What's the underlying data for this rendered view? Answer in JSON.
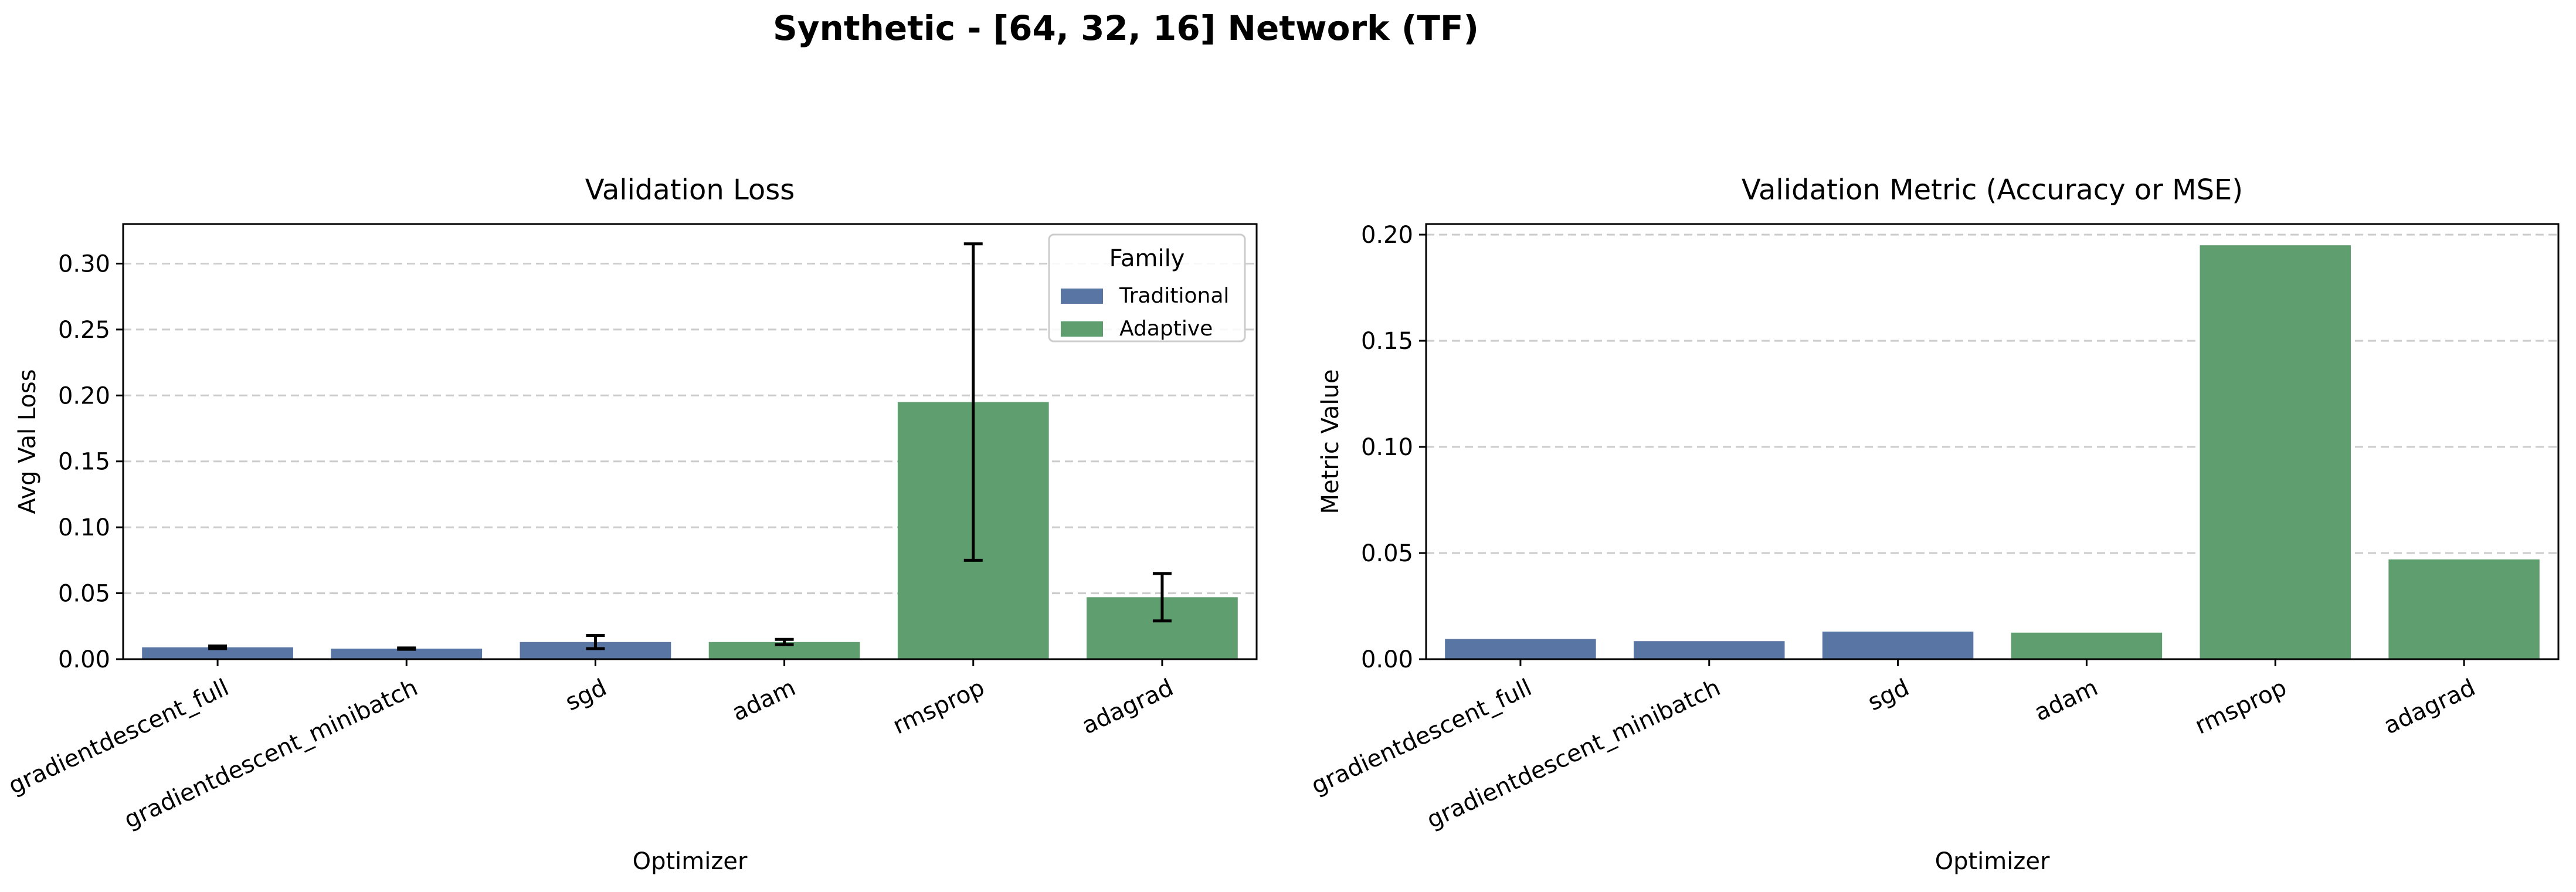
{
  "figure": {
    "suptitle": "Synthetic - [64, 32, 16] Network (TF)"
  },
  "legend": {
    "title": "Family",
    "placement": "upper right",
    "entries": [
      {
        "label": "Traditional",
        "color": "#5875A4"
      },
      {
        "label": "Adaptive",
        "color": "#5F9E6E"
      }
    ]
  },
  "chart_data": [
    {
      "type": "bar",
      "title": "Validation Loss",
      "xlabel": "Optimizer",
      "ylabel": "Avg Val Loss",
      "categories": [
        "gradientdescent_full",
        "gradientdescent_minibatch",
        "sgd",
        "adam",
        "rmsprop",
        "adagrad"
      ],
      "family": [
        "Traditional",
        "Traditional",
        "Traditional",
        "Adaptive",
        "Adaptive",
        "Adaptive"
      ],
      "values": [
        0.009,
        0.008,
        0.013,
        0.013,
        0.195,
        0.047
      ],
      "error": [
        0.001,
        0.0005,
        0.005,
        0.002,
        0.12,
        0.018
      ],
      "ylim": [
        0,
        0.33
      ],
      "yticks": [
        0.0,
        0.05,
        0.1,
        0.15,
        0.2,
        0.25,
        0.3
      ],
      "ytick_labels": [
        "0.00",
        "0.05",
        "0.10",
        "0.15",
        "0.20",
        "0.25",
        "0.30"
      ],
      "grid": "y dashed",
      "legend": true
    },
    {
      "type": "bar",
      "title": "Validation Metric (Accuracy or MSE)",
      "xlabel": "Optimizer",
      "ylabel": "Metric Value",
      "categories": [
        "gradientdescent_full",
        "gradientdescent_minibatch",
        "sgd",
        "adam",
        "rmsprop",
        "adagrad"
      ],
      "family": [
        "Traditional",
        "Traditional",
        "Traditional",
        "Adaptive",
        "Adaptive",
        "Adaptive"
      ],
      "values": [
        0.0095,
        0.0085,
        0.013,
        0.0125,
        0.195,
        0.047
      ],
      "ylim": [
        0,
        0.205
      ],
      "yticks": [
        0.0,
        0.05,
        0.1,
        0.15,
        0.2
      ],
      "ytick_labels": [
        "0.00",
        "0.05",
        "0.10",
        "0.15",
        "0.20"
      ],
      "grid": "y dashed",
      "legend": false
    }
  ]
}
